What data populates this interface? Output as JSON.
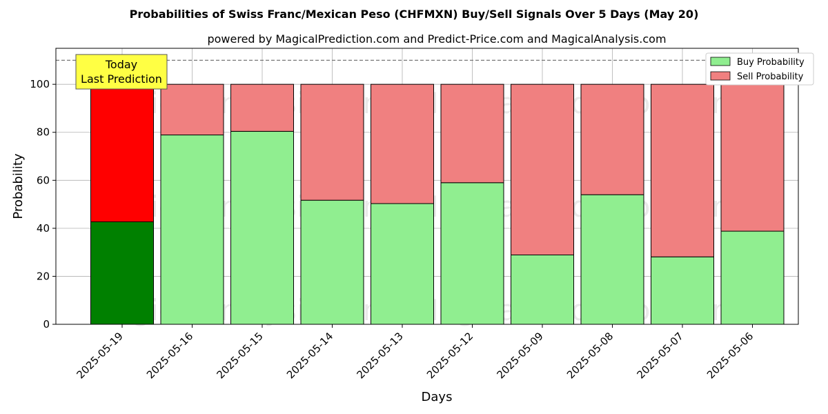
{
  "chart_data": {
    "type": "bar",
    "stacked": true,
    "title": "Probabilities of Swiss Franc/Mexican Peso (CHFMXN) Buy/Sell Signals Over 5 Days (May 20)",
    "subtitle": "powered by MagicalPrediction.com and Predict-Price.com and MagicalAnalysis.com",
    "xlabel": "Days",
    "ylabel": "Probability",
    "ylim": [
      0,
      115
    ],
    "yticks": [
      0,
      20,
      40,
      60,
      80,
      100
    ],
    "grid": true,
    "legend_position": "top-right",
    "reference_line": 110,
    "categories": [
      "2025-05-19",
      "2025-05-16",
      "2025-05-15",
      "2025-05-14",
      "2025-05-13",
      "2025-05-12",
      "2025-05-09",
      "2025-05-08",
      "2025-05-07",
      "2025-05-06"
    ],
    "series": [
      {
        "name": "Buy Probability",
        "color": "#90ee90",
        "highlight_color": "#008000",
        "values": [
          42.7,
          78.9,
          80.4,
          51.7,
          50.3,
          59.0,
          28.9,
          54.0,
          28.1,
          38.8
        ]
      },
      {
        "name": "Sell Probability",
        "color": "#f08080",
        "highlight_color": "#ff0000",
        "values": [
          57.3,
          21.1,
          19.6,
          48.3,
          49.7,
          41.0,
          71.1,
          46.0,
          71.9,
          61.2
        ]
      }
    ],
    "annotation": {
      "line1": "Today",
      "line2": "Last Prediction",
      "color": "#ffff44"
    },
    "watermarks": [
      "MagicalAnalysis.com",
      "MagicalPrediction.com"
    ]
  }
}
